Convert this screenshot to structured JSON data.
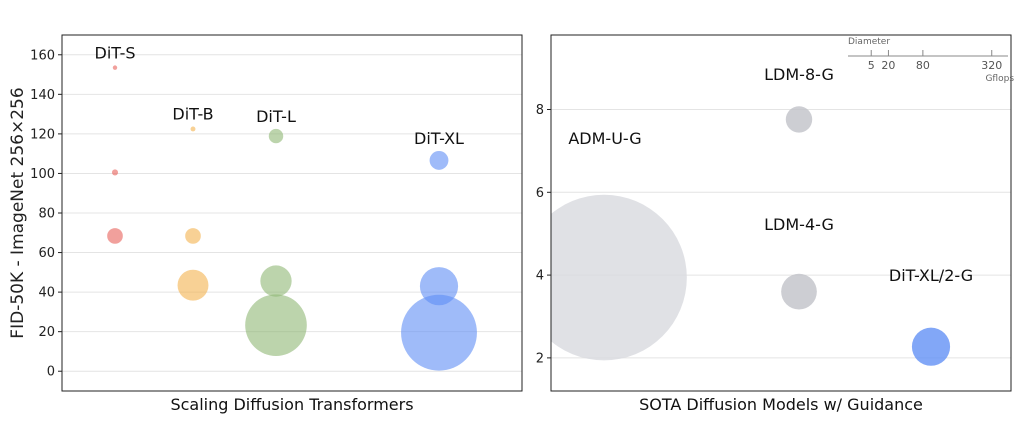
{
  "chart_data": [
    {
      "type": "scatter",
      "xlabel": "Scaling Diffusion Transformers",
      "ylabel": "FID-50K - ImageNet 256×256",
      "ylim": [
        -10,
        170
      ],
      "yticks": [
        0,
        20,
        40,
        60,
        80,
        100,
        120,
        140,
        160
      ],
      "grid": true,
      "groups": [
        {
          "name": "DiT-S",
          "color": "#e8605a",
          "points": [
            {
              "fid": 153.5,
              "gflops": 0.5
            },
            {
              "fid": 100.5,
              "gflops": 3
            },
            {
              "fid": 68.4,
              "gflops": 20
            }
          ]
        },
        {
          "name": "DiT-B",
          "color": "#f4b24e",
          "points": [
            {
              "fid": 122.5,
              "gflops": 2
            },
            {
              "fid": 68.4,
              "gflops": 20
            },
            {
              "fid": 43.5,
              "gflops": 78
            }
          ]
        },
        {
          "name": "DiT-L",
          "color": "#8fb874",
          "points": [
            {
              "fid": 118.9,
              "gflops": 17
            },
            {
              "fid": 45.6,
              "gflops": 80
            },
            {
              "fid": 23.3,
              "gflops": 310
            }
          ]
        },
        {
          "name": "DiT-XL",
          "color": "#5f8ef5",
          "points": [
            {
              "fid": 106.6,
              "gflops": 29
            },
            {
              "fid": 43.0,
              "gflops": 119
            },
            {
              "fid": 19.5,
              "gflops": 470
            }
          ]
        }
      ]
    },
    {
      "type": "scatter",
      "xlabel": "SOTA Diffusion Models w/ Guidance",
      "ylabel": "",
      "ylim": [
        1.2,
        9.8
      ],
      "yticks": [
        2,
        4,
        6,
        8
      ],
      "grid": true,
      "points": [
        {
          "name": "ADM-U-G",
          "fid": 3.94,
          "gflops": 2240,
          "color": "#d8d9de"
        },
        {
          "name": "LDM-8-G",
          "fid": 7.76,
          "gflops": 57,
          "color": "#c1c2c8"
        },
        {
          "name": "LDM-4-G",
          "fid": 3.6,
          "gflops": 104,
          "color": "#c1c2c8"
        },
        {
          "name": "DiT-XL/2-G",
          "fid": 2.27,
          "gflops": 119,
          "color": "#5f8ef5"
        }
      ],
      "size_legend": {
        "title": "Diameter",
        "ticks": [
          5,
          20,
          80,
          320
        ],
        "unit": "Gflops"
      }
    }
  ]
}
